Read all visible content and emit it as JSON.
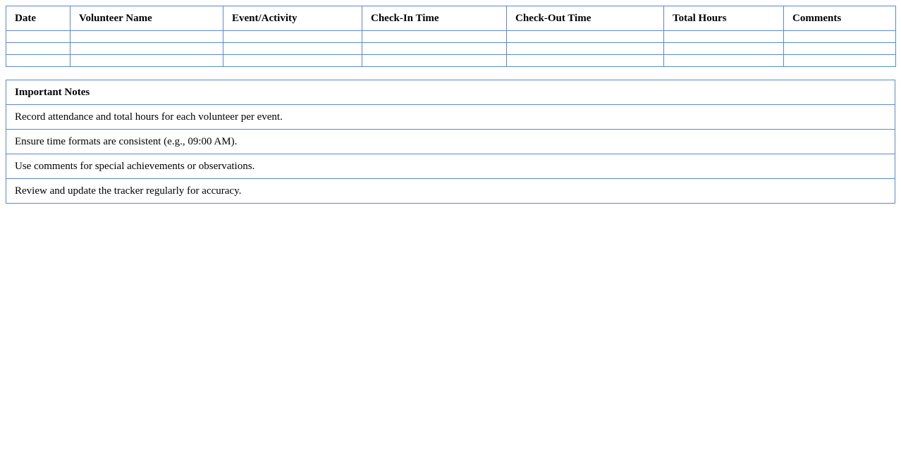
{
  "tracker": {
    "headers": [
      "Date",
      "Volunteer Name",
      "Event/Activity",
      "Check-In Time",
      "Check-Out Time",
      "Total Hours",
      "Comments"
    ],
    "rows": [
      [
        "",
        "",
        "",
        "",
        "",
        "",
        ""
      ],
      [
        "",
        "",
        "",
        "",
        "",
        "",
        ""
      ],
      [
        "",
        "",
        "",
        "",
        "",
        "",
        ""
      ]
    ]
  },
  "notes": {
    "title": "Important Notes",
    "items": [
      "Record attendance and total hours for each volunteer per event.",
      "Ensure time formats are consistent (e.g., 09:00 AM).",
      "Use comments for special achievements or observations.",
      "Review and update the tracker regularly for accuracy."
    ]
  },
  "colors": {
    "border": "#5a88cc"
  }
}
